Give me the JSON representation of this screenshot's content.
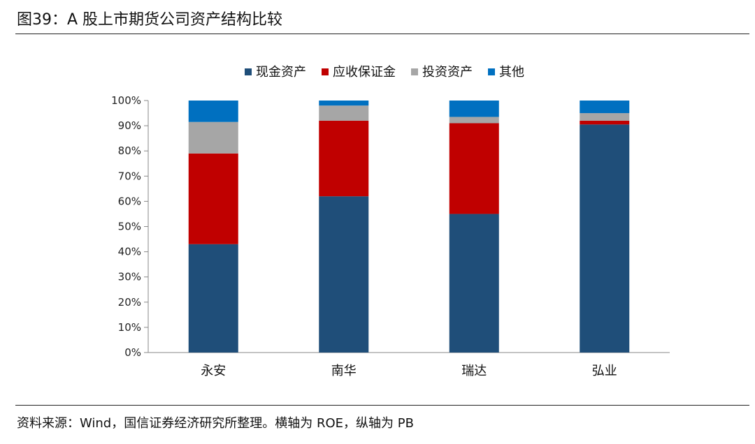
{
  "figure": {
    "title": "图39：A 股上市期货公司资产结构比较",
    "source": "资料来源：Wind，国信证券经济研究所整理。横轴为 ROE，纵轴为 PB"
  },
  "chart_data": {
    "type": "bar",
    "stacked": true,
    "title": "",
    "xlabel": "",
    "ylabel": "",
    "categories": [
      "永安",
      "南华",
      "瑞达",
      "弘业"
    ],
    "ylim": [
      0,
      100
    ],
    "yticks": [
      "0%",
      "10%",
      "20%",
      "30%",
      "40%",
      "50%",
      "60%",
      "70%",
      "80%",
      "90%",
      "100%"
    ],
    "grid": false,
    "legend_position": "top",
    "series": [
      {
        "name": "现金资产",
        "color": "#1F4E79",
        "values": [
          43,
          62,
          55,
          90.5
        ]
      },
      {
        "name": "应收保证金",
        "color": "#C00000",
        "values": [
          36,
          30,
          36,
          1.5
        ]
      },
      {
        "name": "投资资产",
        "color": "#A6A6A6",
        "values": [
          12.5,
          6,
          2.5,
          3
        ]
      },
      {
        "name": "其他",
        "color": "#0070C0",
        "values": [
          8.5,
          2,
          6.5,
          5
        ]
      }
    ]
  }
}
